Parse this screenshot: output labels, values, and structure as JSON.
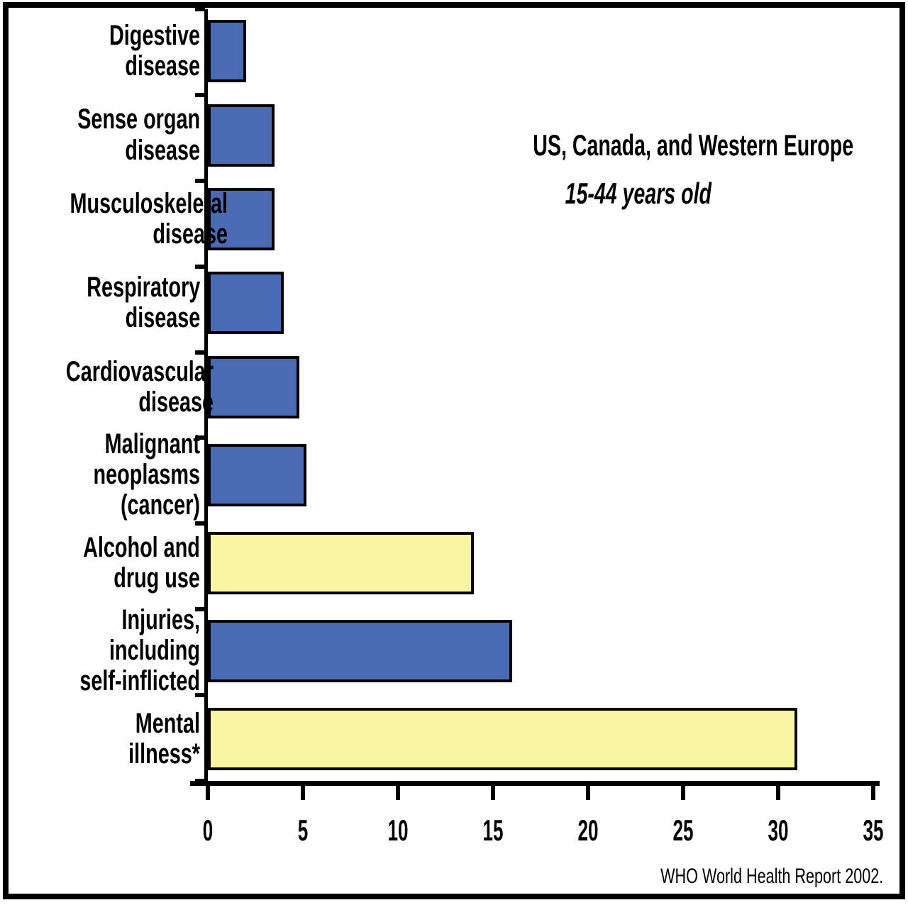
{
  "chart_data": {
    "type": "bar",
    "orientation": "horizontal",
    "title": "US, Canada, and Western Europe",
    "subtitle": "15-44 years old",
    "source": "WHO World Health Report 2002.",
    "categories": [
      "Digestive disease",
      "Sense organ disease",
      "Musculoskeletal disease",
      "Respiratory disease",
      "Cardiovascular disease",
      "Malignant neoplasms (cancer)",
      "Alcohol and drug use",
      "Injuries, including self-inflicted",
      "Mental illness*"
    ],
    "labels_display": [
      "Digestive disease",
      "Sense organ\ndisease",
      "Musculoskeletal\ndisease",
      "Respiratory\ndisease",
      "Cardiovascular\ndisease",
      "Malignant\nneoplasms (cancer)",
      "Alcohol and\ndrug use",
      "Injuries, including\nself-inflicted",
      "Mental illness*"
    ],
    "values": [
      2,
      3.5,
      3.5,
      4,
      4.8,
      5.2,
      14,
      16,
      31
    ],
    "bar_colors": [
      "blue",
      "blue",
      "blue",
      "blue",
      "blue",
      "blue",
      "yellow",
      "blue",
      "yellow"
    ],
    "colors": {
      "blue": "#4a6bb3",
      "yellow": "#f9f6a3",
      "bar_border": "#000000"
    },
    "xlim": [
      0,
      35
    ],
    "xticks": [
      0,
      5,
      10,
      15,
      20,
      25,
      30,
      35
    ],
    "xlabel": "",
    "ylabel": "",
    "grid": false,
    "legend": false
  }
}
